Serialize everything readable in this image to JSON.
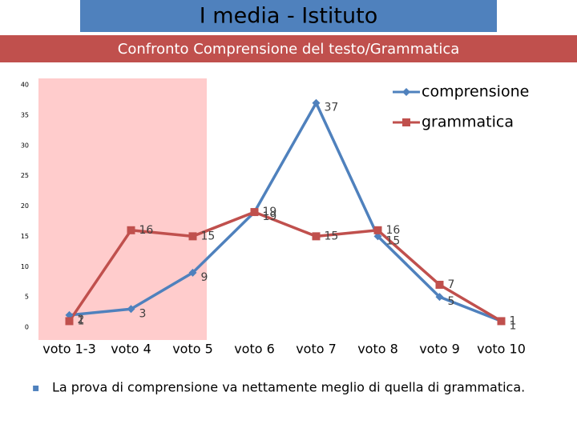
{
  "chart_data": {
    "type": "line",
    "title": "I media - Istituto",
    "subtitle": "Confronto Comprensione del testo/Grammatica",
    "categories": [
      "voto 1-3",
      "voto 4",
      "voto 5",
      "voto 6",
      "voto 7",
      "voto 8",
      "voto 9",
      "voto 10"
    ],
    "series": [
      {
        "name": "comprensione",
        "color": "#4f81bd",
        "marker": "diamond",
        "values": [
          2,
          3,
          9,
          19,
          37,
          15,
          5,
          1
        ]
      },
      {
        "name": "grammatica",
        "color": "#c0504d",
        "marker": "square",
        "values": [
          1,
          16,
          15,
          19,
          15,
          16,
          7,
          1
        ]
      }
    ],
    "ylim": [
      0,
      40
    ],
    "yticks": [
      0,
      5,
      10,
      15,
      20,
      25,
      30,
      35,
      40
    ],
    "legend": "top-right"
  },
  "note": "La prova di comprensione va nettamente meglio di quella di grammatica."
}
